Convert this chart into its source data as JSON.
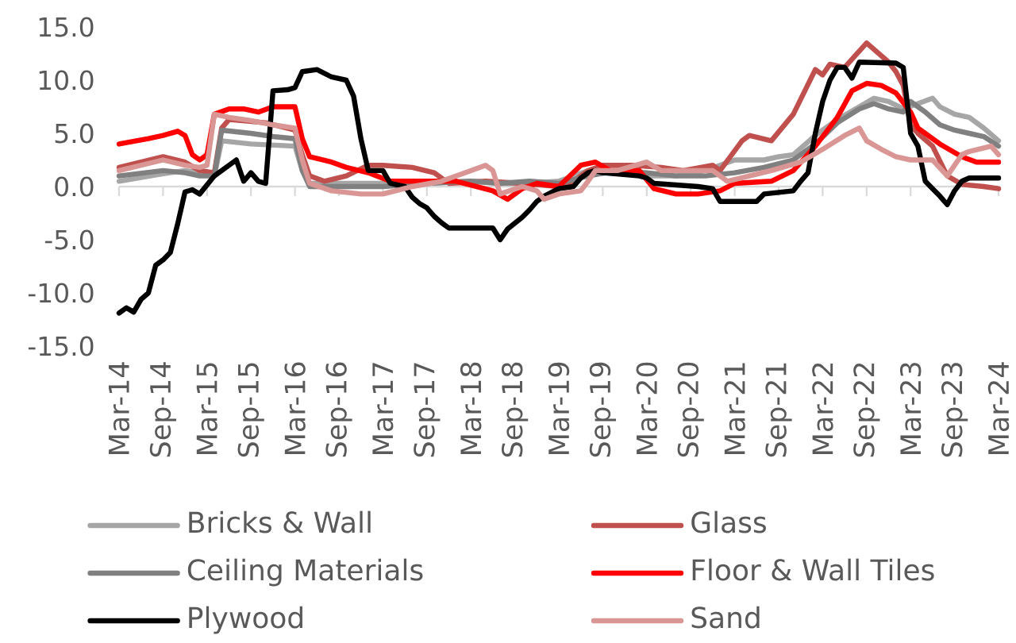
{
  "chart_data": {
    "type": "line",
    "xlim": [
      "2014-03",
      "2024-03"
    ],
    "ylim": [
      -15,
      15
    ],
    "xticks": [
      {
        "value": "2014-03",
        "label": "Mar-14"
      },
      {
        "value": "2014-09",
        "label": "Sep-14"
      },
      {
        "value": "2015-03",
        "label": "Mar-15"
      },
      {
        "value": "2015-09",
        "label": "Sep-15"
      },
      {
        "value": "2016-03",
        "label": "Mar-16"
      },
      {
        "value": "2016-09",
        "label": "Sep-16"
      },
      {
        "value": "2017-03",
        "label": "Mar-17"
      },
      {
        "value": "2017-09",
        "label": "Sep-17"
      },
      {
        "value": "2018-03",
        "label": "Mar-18"
      },
      {
        "value": "2018-09",
        "label": "Sep-18"
      },
      {
        "value": "2019-03",
        "label": "Mar-19"
      },
      {
        "value": "2019-09",
        "label": "Sep-19"
      },
      {
        "value": "2020-03",
        "label": "Mar-20"
      },
      {
        "value": "2020-09",
        "label": "Sep-20"
      },
      {
        "value": "2021-03",
        "label": "Mar-21"
      },
      {
        "value": "2021-09",
        "label": "Sep-21"
      },
      {
        "value": "2022-03",
        "label": "Mar-22"
      },
      {
        "value": "2022-09",
        "label": "Sep-22"
      },
      {
        "value": "2023-03",
        "label": "Mar-23"
      },
      {
        "value": "2023-09",
        "label": "Sep-23"
      },
      {
        "value": "2024-03",
        "label": "Mar-24"
      }
    ],
    "yticks": [
      {
        "value": -15,
        "label": "-15.0"
      },
      {
        "value": -10,
        "label": "-10.0"
      },
      {
        "value": -5,
        "label": "-5.0"
      },
      {
        "value": 0,
        "label": "0.0"
      },
      {
        "value": 5,
        "label": "5.0"
      },
      {
        "value": 10,
        "label": "10.0"
      },
      {
        "value": 15,
        "label": "15.0"
      }
    ],
    "legend": "bottom",
    "series": [
      {
        "name": "Bricks & Wall",
        "color": "#a6a6a6",
        "x": [
          "2014-03",
          "2014-09",
          "2014-12",
          "2015-02",
          "2015-04",
          "2015-05",
          "2015-09",
          "2016-03",
          "2016-04",
          "2016-05",
          "2016-09",
          "2017-03",
          "2017-09",
          "2018-03",
          "2018-07",
          "2018-11",
          "2019-03",
          "2019-07",
          "2019-11",
          "2020-03",
          "2020-07",
          "2020-11",
          "2021-03",
          "2021-07",
          "2021-09",
          "2021-11",
          "2022-02",
          "2022-05",
          "2022-08",
          "2022-10",
          "2022-12",
          "2023-02",
          "2023-04",
          "2023-06",
          "2023-07",
          "2023-09",
          "2023-11",
          "2024-01",
          "2024-03"
        ],
        "values": [
          0.5,
          1.2,
          1.5,
          1.3,
          1.0,
          4.3,
          4.0,
          3.8,
          1.5,
          0.3,
          0.3,
          0.3,
          0.3,
          0.5,
          0.3,
          0.3,
          0.5,
          1.5,
          1.5,
          1.0,
          1.0,
          1.5,
          2.5,
          2.5,
          2.8,
          3.0,
          4.8,
          6.3,
          7.5,
          8.3,
          8.0,
          7.3,
          7.8,
          8.3,
          7.5,
          6.8,
          6.5,
          5.5,
          4.3
        ]
      },
      {
        "name": "Glass",
        "color": "#c0504d",
        "x": [
          "2014-03",
          "2014-09",
          "2014-12",
          "2015-02",
          "2015-04",
          "2015-05",
          "2015-06",
          "2015-11",
          "2016-03",
          "2016-04",
          "2016-05",
          "2016-07",
          "2016-10",
          "2017-01",
          "2017-03",
          "2017-07",
          "2017-10",
          "2017-12",
          "2018-05",
          "2018-10",
          "2019-03",
          "2019-05",
          "2019-07",
          "2019-09",
          "2020-01",
          "2020-05",
          "2020-08",
          "2020-12",
          "2021-01",
          "2021-04",
          "2021-05",
          "2021-08",
          "2021-11",
          "2022-02",
          "2022-03",
          "2022-04",
          "2022-06",
          "2022-09",
          "2022-12",
          "2023-01",
          "2023-02",
          "2023-03",
          "2023-04",
          "2023-06",
          "2023-08",
          "2023-10",
          "2024-01",
          "2024-03"
        ],
        "values": [
          1.8,
          2.8,
          2.3,
          1.5,
          1.3,
          5.5,
          6.3,
          6.0,
          5.3,
          3.0,
          1.0,
          0.5,
          1.0,
          2.0,
          2.0,
          1.8,
          1.3,
          0.3,
          0.5,
          0.3,
          0.0,
          0.5,
          1.5,
          2.0,
          2.0,
          1.8,
          1.5,
          2.0,
          1.5,
          4.3,
          4.8,
          4.3,
          6.8,
          11.0,
          10.5,
          11.5,
          11.2,
          13.5,
          11.7,
          10.8,
          9.5,
          5.8,
          5.0,
          3.8,
          1.0,
          0.2,
          0.0,
          -0.2
        ]
      },
      {
        "name": "Ceiling Materials",
        "color": "#808080",
        "x": [
          "2014-03",
          "2014-09",
          "2014-12",
          "2015-02",
          "2015-04",
          "2015-05",
          "2015-09",
          "2015-12",
          "2016-03",
          "2016-04",
          "2016-05",
          "2016-09",
          "2017-03",
          "2017-09",
          "2018-03",
          "2018-07",
          "2018-11",
          "2019-03",
          "2019-07",
          "2019-11",
          "2020-03",
          "2020-07",
          "2020-11",
          "2021-03",
          "2021-07",
          "2021-11",
          "2022-02",
          "2022-05",
          "2022-08",
          "2022-10",
          "2022-12",
          "2023-02",
          "2023-03",
          "2023-05",
          "2023-07",
          "2023-09",
          "2023-11",
          "2024-01",
          "2024-03"
        ],
        "values": [
          1.0,
          1.5,
          1.3,
          1.0,
          1.0,
          5.3,
          5.0,
          4.7,
          4.5,
          1.5,
          0.0,
          0.0,
          0.0,
          0.3,
          0.5,
          0.3,
          0.5,
          0.3,
          1.0,
          1.5,
          1.3,
          1.0,
          1.0,
          1.3,
          1.8,
          2.5,
          4.0,
          6.0,
          7.3,
          7.8,
          7.3,
          7.0,
          8.0,
          7.0,
          5.8,
          5.3,
          5.0,
          4.7,
          3.8
        ]
      },
      {
        "name": "Floor & Wall Tiles",
        "color": "#ff0000",
        "x": [
          "2014-03",
          "2014-07",
          "2014-09",
          "2014-11",
          "2014-12",
          "2015-01",
          "2015-02",
          "2015-03",
          "2015-04",
          "2015-06",
          "2015-08",
          "2015-10",
          "2015-12",
          "2016-03",
          "2016-04",
          "2016-05",
          "2016-08",
          "2016-10",
          "2017-01",
          "2017-04",
          "2017-07",
          "2018-01",
          "2018-06",
          "2018-08",
          "2018-10",
          "2018-12",
          "2019-03",
          "2019-06",
          "2019-08",
          "2019-10",
          "2020-02",
          "2020-04",
          "2020-07",
          "2020-10",
          "2021-01",
          "2021-03",
          "2021-08",
          "2021-11",
          "2022-02",
          "2022-05",
          "2022-07",
          "2022-09",
          "2022-11",
          "2023-01",
          "2023-03",
          "2023-04",
          "2023-07",
          "2023-10",
          "2023-12",
          "2024-03"
        ],
        "values": [
          4.0,
          4.5,
          4.8,
          5.2,
          4.8,
          3.0,
          2.5,
          3.0,
          6.8,
          7.3,
          7.3,
          7.0,
          7.5,
          7.5,
          4.5,
          2.8,
          2.3,
          1.8,
          1.3,
          0.5,
          0.5,
          0.5,
          -0.4,
          -1.2,
          -0.2,
          0.3,
          0.0,
          2.0,
          2.3,
          1.5,
          1.5,
          -0.2,
          -0.7,
          -0.7,
          -0.4,
          0.3,
          0.5,
          1.5,
          3.8,
          6.5,
          9.0,
          9.7,
          9.5,
          8.8,
          7.0,
          5.5,
          4.0,
          2.8,
          2.3,
          2.3
        ]
      },
      {
        "name": "Plywood",
        "color": "#000000",
        "x": [
          "2014-03",
          "2014-04",
          "2014-05",
          "2014-06",
          "2014-07",
          "2014-08",
          "2014-09",
          "2014-10",
          "2014-11",
          "2014-12",
          "2015-01",
          "2015-02",
          "2015-04",
          "2015-07",
          "2015-08",
          "2015-09",
          "2015-10",
          "2015-11",
          "2015-12",
          "2016-02",
          "2016-03",
          "2016-04",
          "2016-06",
          "2016-08",
          "2016-10",
          "2016-11",
          "2016-12",
          "2017-01",
          "2017-03",
          "2017-04",
          "2017-06",
          "2017-07",
          "2017-08",
          "2017-09",
          "2017-10",
          "2017-11",
          "2017-12",
          "2018-06",
          "2018-07",
          "2018-08",
          "2018-10",
          "2018-11",
          "2018-12",
          "2019-01",
          "2019-03",
          "2019-05",
          "2019-06",
          "2019-07",
          "2019-08",
          "2019-09",
          "2020-02",
          "2020-03",
          "2020-04",
          "2020-10",
          "2020-12",
          "2021-01",
          "2021-06",
          "2021-07",
          "2021-11",
          "2021-12",
          "2022-01",
          "2022-02",
          "2022-03",
          "2022-04",
          "2022-05",
          "2022-06",
          "2022-07",
          "2022-08",
          "2023-01",
          "2023-02",
          "2023-03",
          "2023-04",
          "2023-05",
          "2023-06",
          "2023-07",
          "2023-08",
          "2023-09",
          "2023-10",
          "2023-11",
          "2024-03"
        ],
        "values": [
          -11.9,
          -11.4,
          -11.8,
          -10.6,
          -10.0,
          -7.4,
          -6.9,
          -6.2,
          -3.5,
          -0.5,
          -0.3,
          -0.7,
          1.0,
          2.5,
          0.5,
          1.3,
          0.5,
          0.3,
          9.0,
          9.1,
          9.3,
          10.8,
          11.0,
          10.3,
          10.0,
          8.5,
          4.5,
          1.5,
          1.5,
          0.3,
          0.0,
          -1.0,
          -1.6,
          -2.0,
          -2.8,
          -3.4,
          -3.9,
          -3.9,
          -5.0,
          -4.0,
          -2.9,
          -2.2,
          -1.4,
          -0.9,
          -0.2,
          0.0,
          0.8,
          1.3,
          1.5,
          1.3,
          1.0,
          0.8,
          0.3,
          0.0,
          -0.2,
          -1.4,
          -1.4,
          -0.7,
          -0.4,
          0.5,
          1.3,
          5.0,
          8.0,
          10.0,
          11.2,
          11.2,
          10.2,
          11.7,
          11.6,
          11.2,
          5.0,
          3.8,
          0.5,
          -0.2,
          -0.9,
          -1.7,
          -0.4,
          0.5,
          0.8,
          0.8
        ]
      },
      {
        "name": "Sand",
        "color": "#da9694",
        "x": [
          "2014-03",
          "2014-09",
          "2014-12",
          "2015-02",
          "2015-03",
          "2015-04",
          "2015-06",
          "2015-09",
          "2015-12",
          "2016-03",
          "2016-04",
          "2016-05",
          "2016-08",
          "2016-12",
          "2017-03",
          "2017-07",
          "2017-11",
          "2018-03",
          "2018-05",
          "2018-06",
          "2018-07",
          "2018-10",
          "2018-12",
          "2019-01",
          "2019-03",
          "2019-06",
          "2019-07",
          "2019-08",
          "2019-11",
          "2020-03",
          "2020-05",
          "2020-08",
          "2020-12",
          "2021-02",
          "2021-05",
          "2021-08",
          "2021-12",
          "2022-03",
          "2022-06",
          "2022-08",
          "2022-09",
          "2022-11",
          "2023-01",
          "2023-03",
          "2023-06",
          "2023-08",
          "2023-10",
          "2023-11",
          "2024-02",
          "2024-03"
        ],
        "values": [
          1.5,
          2.5,
          2.0,
          1.8,
          2.0,
          6.8,
          6.5,
          6.2,
          5.8,
          5.5,
          2.5,
          0.3,
          -0.4,
          -0.7,
          -0.7,
          0.0,
          0.5,
          1.5,
          2.0,
          1.5,
          -0.7,
          0.0,
          -0.4,
          -1.2,
          -0.7,
          -0.4,
          0.5,
          1.5,
          1.5,
          2.3,
          1.5,
          1.5,
          1.5,
          0.5,
          1.0,
          1.5,
          2.3,
          3.5,
          4.8,
          5.5,
          4.3,
          3.5,
          2.8,
          2.5,
          2.5,
          1.0,
          3.0,
          3.3,
          3.8,
          3.0
        ]
      }
    ]
  }
}
